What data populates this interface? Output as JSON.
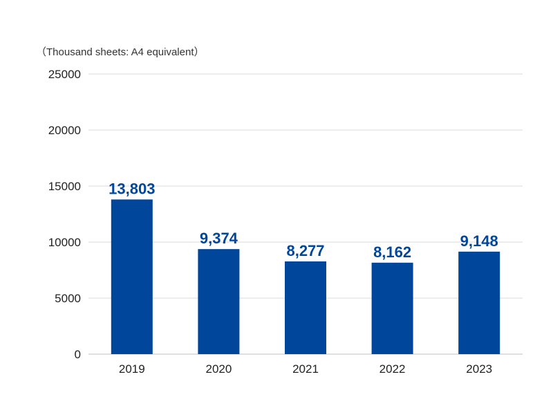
{
  "chart_data": {
    "type": "bar",
    "unit_label": "（Thousand sheets: A4 equivalent）",
    "categories": [
      "2019",
      "2020",
      "2021",
      "2022",
      "2023"
    ],
    "values": [
      13803,
      9374,
      8277,
      8162,
      9148
    ],
    "data_labels": [
      "13,803",
      "9,374",
      "8,277",
      "8,162",
      "9,148"
    ],
    "ylim": [
      0,
      25000
    ],
    "yticks": [
      0,
      5000,
      10000,
      15000,
      20000,
      25000
    ],
    "ytick_labels": [
      "0",
      "5000",
      "10000",
      "15000",
      "20000",
      "25000"
    ],
    "grid": true,
    "bar_color": "#00469b",
    "label_color": "#00469b",
    "grid_color": "#d9d9d9"
  }
}
